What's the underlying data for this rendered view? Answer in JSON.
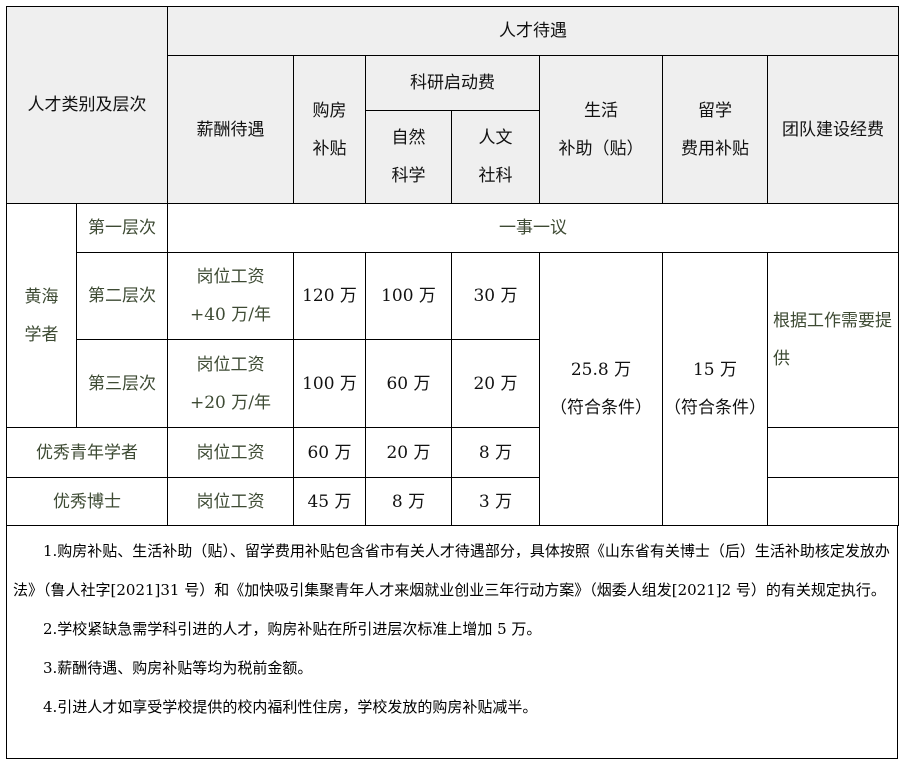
{
  "header": {
    "category": "人才类别及层次",
    "treatment": "人才待遇",
    "salary": "薪酬待遇",
    "housing": [
      "购房",
      "补贴"
    ],
    "research": "科研启动费",
    "natural": [
      "自然",
      "科学"
    ],
    "humanities": [
      "人文",
      "社科"
    ],
    "living": [
      "生活",
      "补助（贴）"
    ],
    "abroad": [
      "留学",
      "费用补贴"
    ],
    "team": "团队建设经费"
  },
  "rows": {
    "group": [
      "黄海",
      "学者"
    ],
    "level1": {
      "label": "第一层次",
      "value": "一事一议"
    },
    "level2": {
      "label": "第二层次",
      "salary": [
        "岗位工资",
        "+40 万/年"
      ],
      "housing": "120 万",
      "natural": "100 万",
      "humanities": "30 万"
    },
    "level3": {
      "label": "第三层次",
      "salary": [
        "岗位工资",
        "+20 万/年"
      ],
      "housing": "100 万",
      "natural": "60 万",
      "humanities": "20 万"
    },
    "youth": {
      "label": "优秀青年学者",
      "salary": "岗位工资",
      "housing": "60 万",
      "natural": "20 万",
      "humanities": "8 万"
    },
    "phd": {
      "label": "优秀博士",
      "salary": "岗位工资",
      "housing": "45 万",
      "natural": "8 万",
      "humanities": "3 万"
    },
    "living": [
      "25.8 万",
      "（符合条件）"
    ],
    "abroad": [
      "15 万",
      "（符合条件）"
    ],
    "team": "根据工作需要提供"
  },
  "notes": [
    "1.购房补贴、生活补助（贴）、留学费用补贴包含省市有关人才待遇部分，具体按照《山东省有关博士（后）生活补助核定发放办法》（鲁人社字[2021]31 号）和《加快吸引集聚青年人才来烟就业创业三年行动方案》（烟委人组发[2021]2 号）的有关规定执行。",
    "2.学校紧缺急需学科引进的人才，购房补贴在所引进层次标准上增加 5 万。",
    "3.薪酬待遇、购房补贴等均为税前金额。",
    "4.引进人才如享受学校提供的校内福利性住房，学校发放的购房补贴减半。"
  ]
}
